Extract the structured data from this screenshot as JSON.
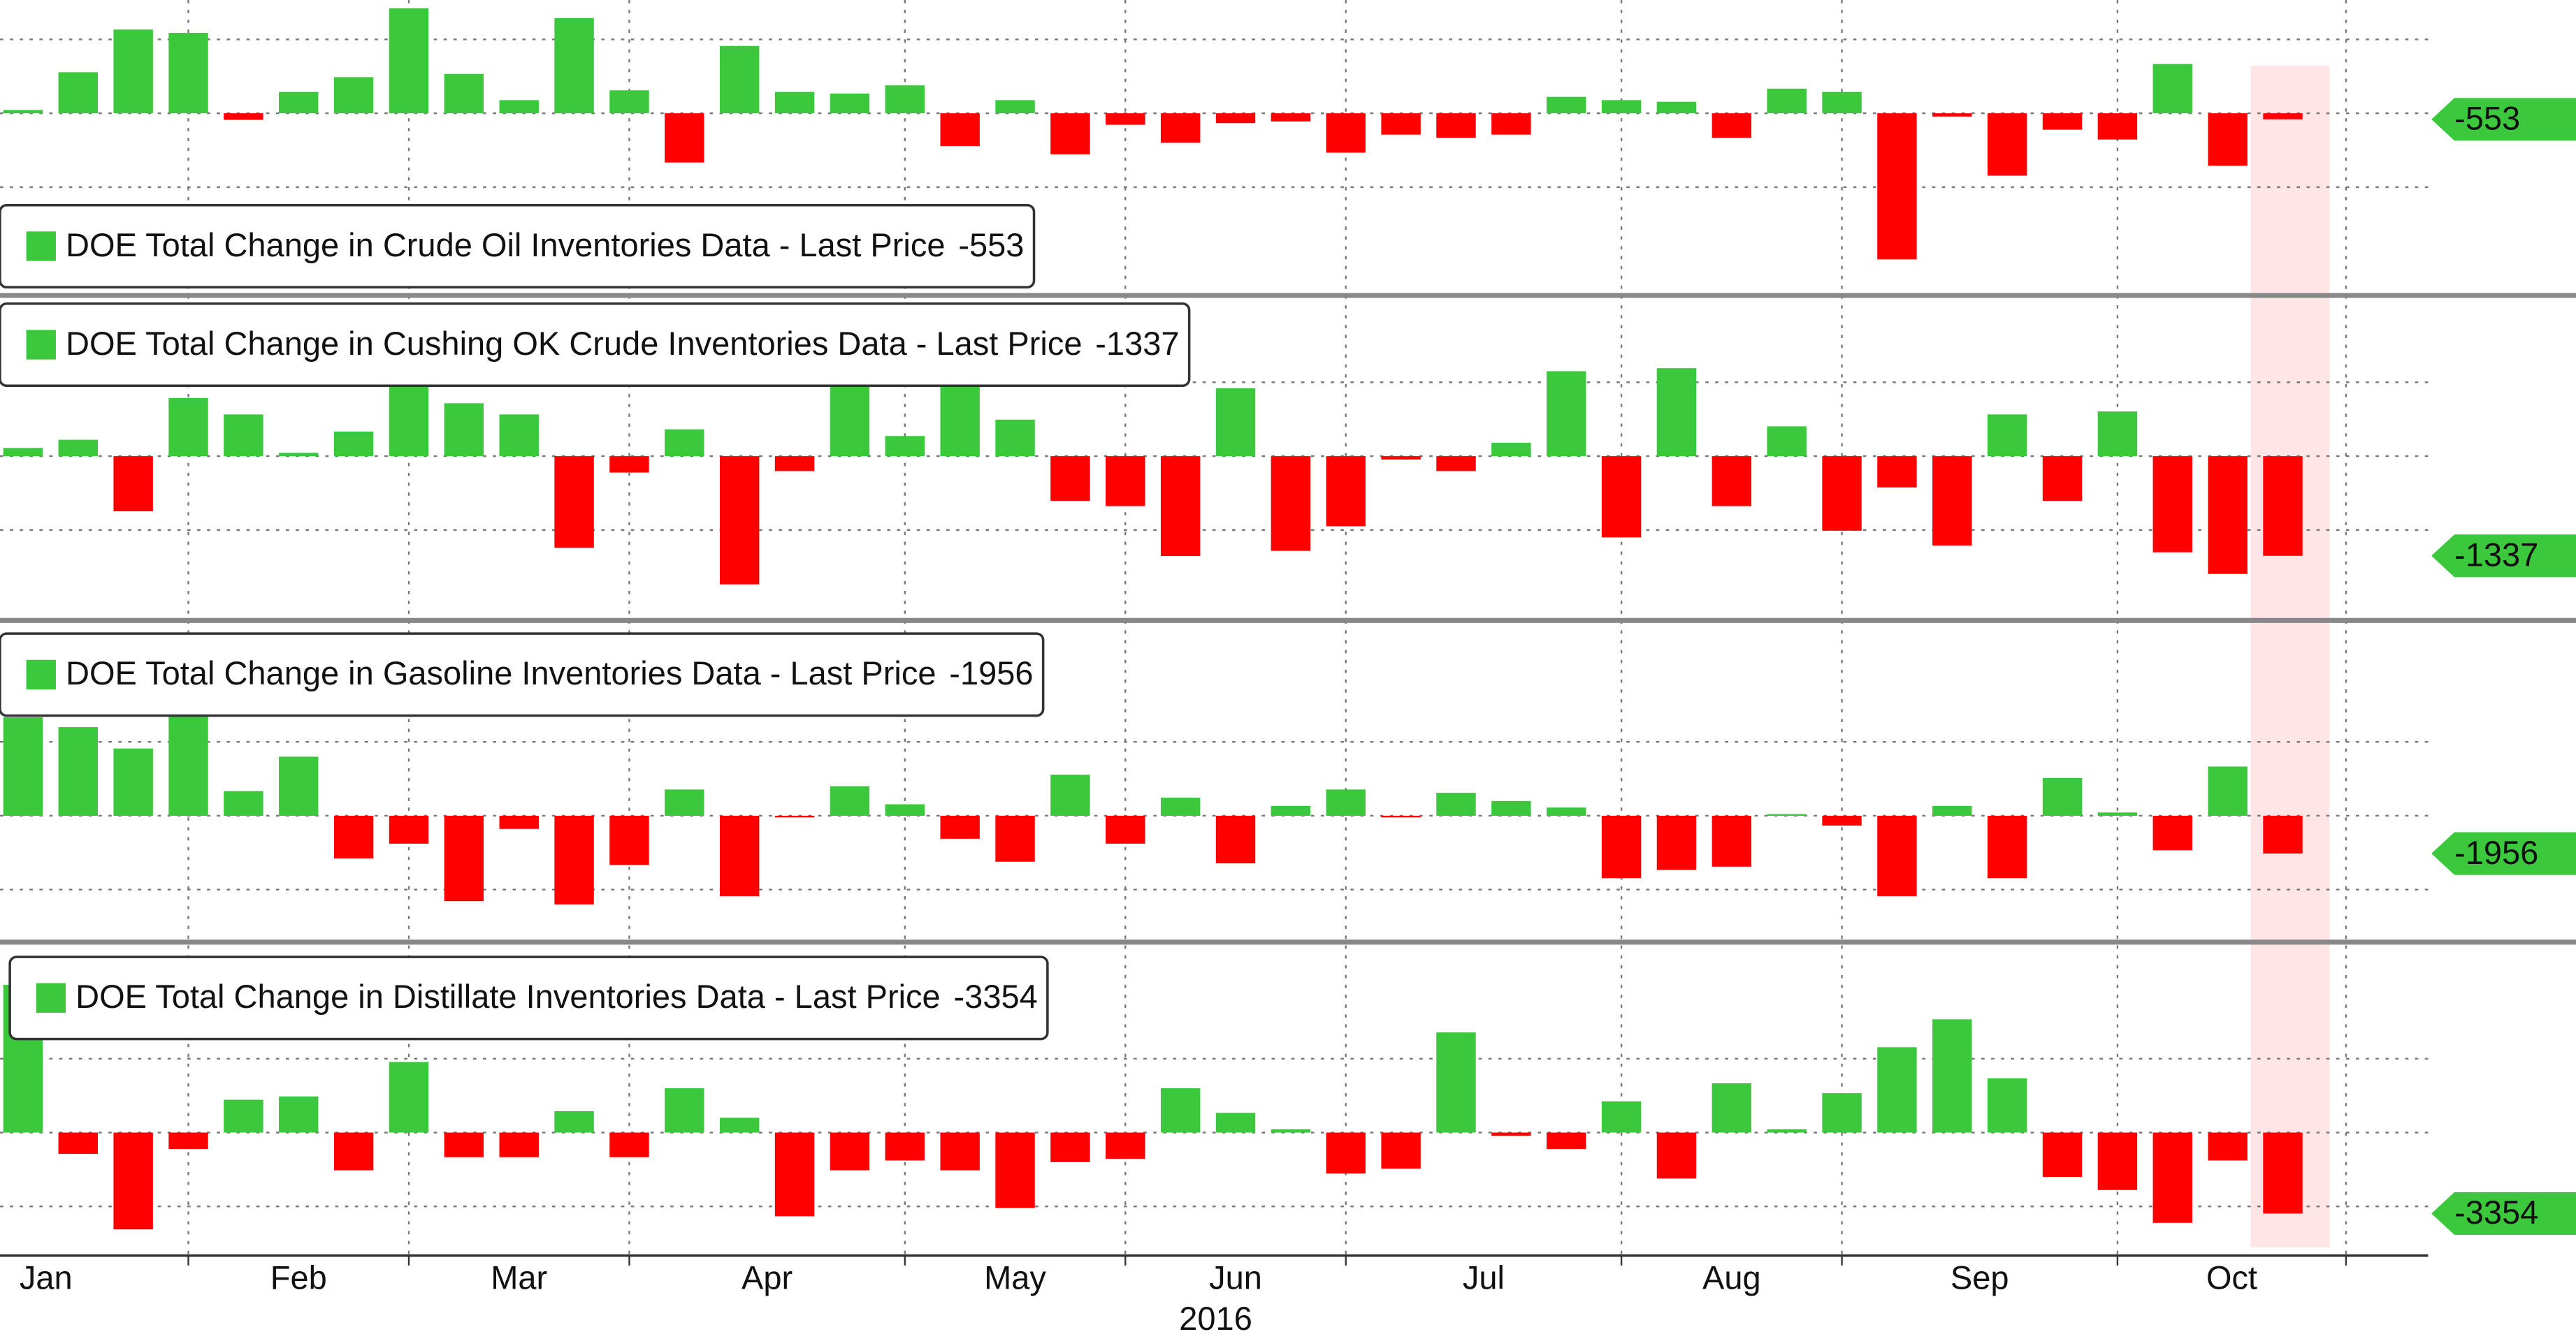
{
  "chart_data": [
    {
      "type": "bar",
      "name": "DOE Total Change in Crude Oil Inventories Data - Last Price",
      "last_price": -553,
      "colors": {
        "positive": "#3cc83c",
        "negative": "#ff0000"
      },
      "ylim": [
        -16350,
        10350
      ],
      "values": [
        300,
        3750,
        7650,
        7350,
        -600,
        1950,
        3300,
        9600,
        3600,
        1200,
        8700,
        2100,
        -4500,
        6150,
        1950,
        1800,
        2550,
        -3000,
        1200,
        -3750,
        -1050,
        -2700,
        -900,
        -750,
        -3600,
        -1950,
        -2250,
        -1950,
        1500,
        1200,
        1050,
        -2250,
        2250,
        1950,
        -13350,
        -300,
        -5700,
        -1500,
        -2400,
        4500,
        -4800,
        -553
      ]
    },
    {
      "type": "bar",
      "name": "DOE Total Change in Cushing OK Crude Inventories Data - Last Price",
      "last_price": -1337,
      "colors": {
        "positive": "#3cc83c",
        "negative": "#ff0000"
      },
      "ylim": [
        -2160,
        2090
      ],
      "values": [
        110,
        220,
        -740,
        780,
        560,
        45,
        330,
        980,
        710,
        560,
        -1230,
        -220,
        360,
        -1720,
        -200,
        980,
        270,
        980,
        490,
        -600,
        -670,
        -1340,
        910,
        -1270,
        -940,
        -45,
        -200,
        180,
        1140,
        -1090,
        1180,
        -670,
        400,
        -1000,
        -420,
        -1200,
        560,
        -600,
        600,
        -1290,
        -1580,
        -1337
      ]
    },
    {
      "type": "bar",
      "name": "DOE Total Change in Gasoline Inventories Data - Last Price",
      "last_price": -1956,
      "colors": {
        "positive": "#3cc83c",
        "negative": "#ff0000"
      },
      "ylim": [
        -6375,
        9945
      ],
      "values": [
        5100,
        4590,
        3485,
        5270,
        1275,
        3060,
        -2210,
        -1445,
        -4420,
        -680,
        -4590,
        -2550,
        1360,
        -4165,
        -85,
        1530,
        595,
        -1190,
        -2380,
        2125,
        -1445,
        935,
        -2465,
        510,
        1360,
        -85,
        1190,
        765,
        425,
        -3230,
        -2805,
        -2635,
        85,
        -510,
        -4165,
        510,
        -3230,
        1955,
        170,
        -1785,
        2550,
        -1956
      ]
    },
    {
      "type": "bar",
      "name": "DOE Total Change in Distillate Inventories Data - Last Price",
      "last_price": -3354,
      "colors": {
        "positive": "#3cc83c",
        "negative": "#ff0000"
      },
      "ylim": [
        -4896,
        7752
      ],
      "values": [
        6120,
        -884,
        -4012,
        -680,
        1360,
        1496,
        -1564,
        2924,
        -1020,
        -1020,
        884,
        -1020,
        1836,
        612,
        -3468,
        -1564,
        -1156,
        -1564,
        -3128,
        -1224,
        -1088,
        1836,
        816,
        136,
        -1700,
        -1496,
        4148,
        -136,
        -680,
        1292,
        -1904,
        2040,
        136,
        1632,
        3536,
        4692,
        2244,
        -1836,
        -2380,
        -3740,
        -1156,
        -3354
      ],
      "categories": [
        "Jan",
        null,
        null,
        "Feb",
        null,
        null,
        null,
        "Mar",
        null,
        null,
        null,
        "Apr",
        null,
        null,
        null,
        null,
        "May",
        null,
        null,
        null,
        "Jun",
        null,
        null,
        null,
        "Jul",
        null,
        null,
        null,
        null,
        "Aug",
        null,
        null,
        null,
        "Sep",
        null,
        null,
        null,
        null,
        "Oct",
        null,
        null,
        null
      ],
      "xlabel": "2016"
    }
  ]
}
